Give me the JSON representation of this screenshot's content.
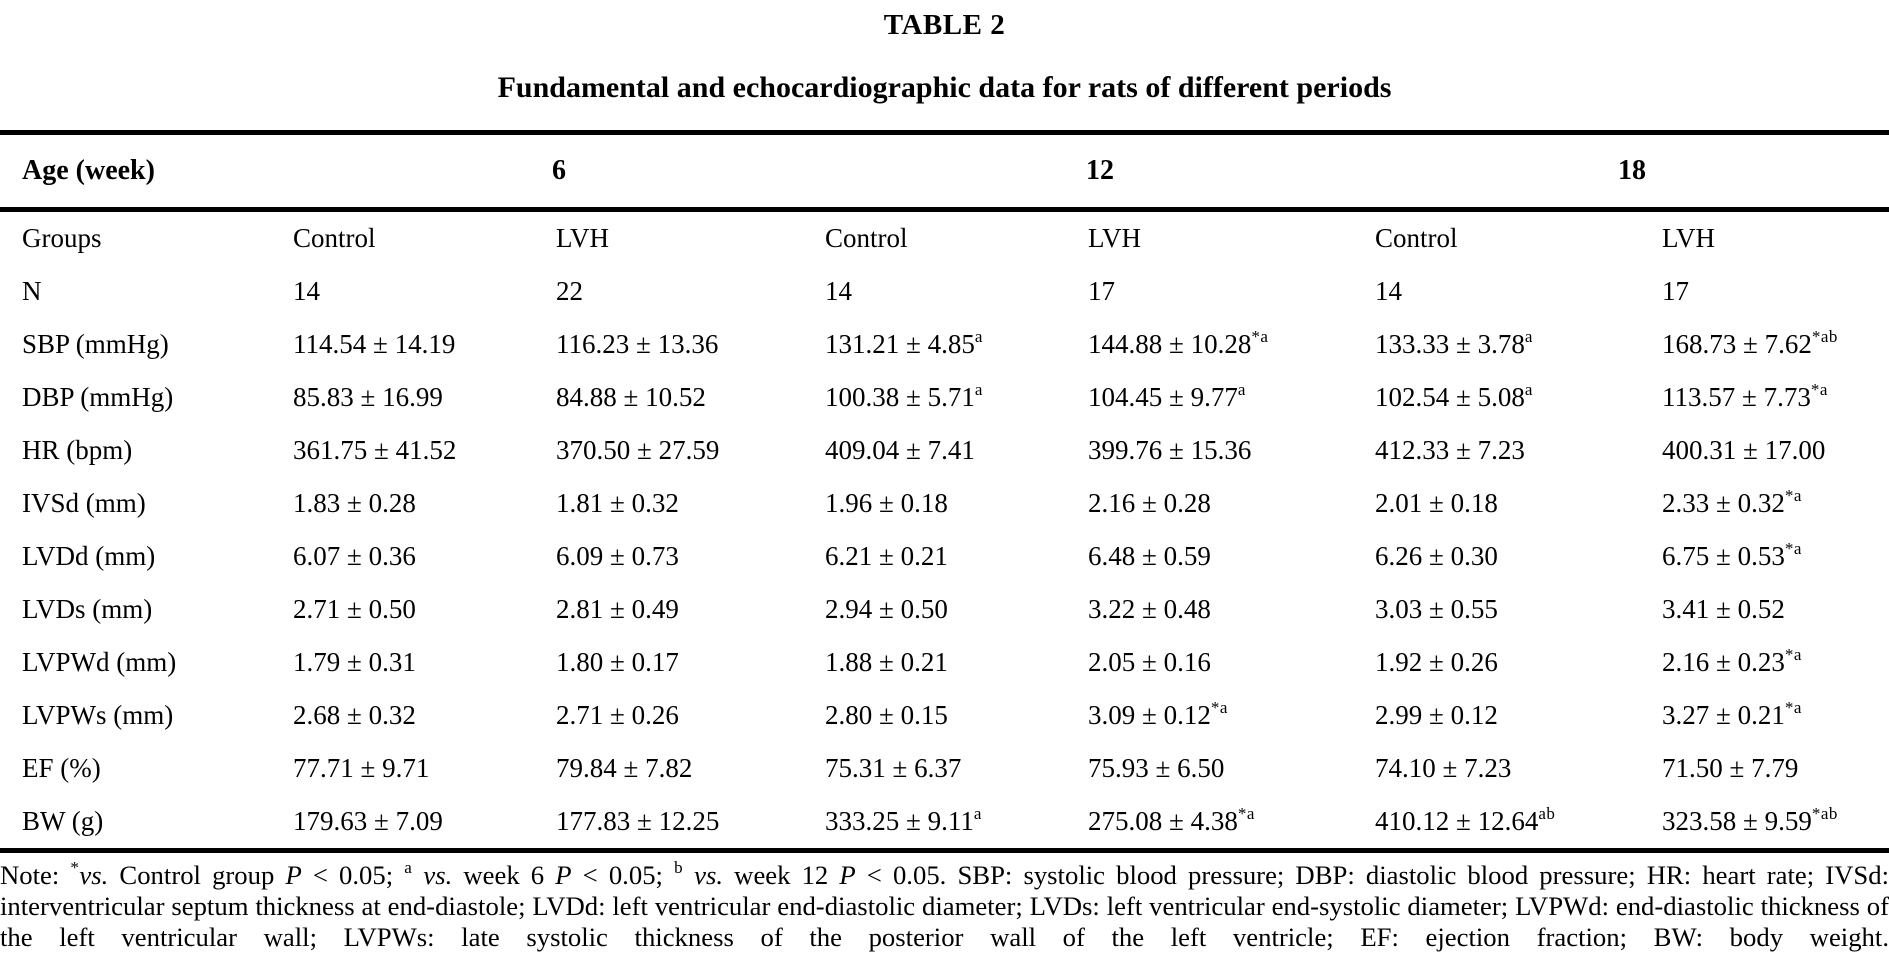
{
  "colors": {
    "text": "#000000",
    "background": "#ffffff"
  },
  "page": {
    "title": "TABLE 2",
    "subtitle": "Fundamental and echocardiographic data for rats of different periods"
  },
  "table": {
    "age_row": {
      "label": "Age (week)",
      "groups": [
        "6",
        "12",
        "18"
      ]
    },
    "rows": [
      {
        "label": "Groups",
        "cells": [
          {
            "v": "Control"
          },
          {
            "v": "LVH"
          },
          {
            "v": "Control"
          },
          {
            "v": "LVH"
          },
          {
            "v": "Control"
          },
          {
            "v": "LVH"
          }
        ]
      },
      {
        "label": "N",
        "cells": [
          {
            "v": "14"
          },
          {
            "v": "22"
          },
          {
            "v": "14"
          },
          {
            "v": "17"
          },
          {
            "v": "14"
          },
          {
            "v": "17"
          }
        ]
      },
      {
        "label": "SBP (mmHg)",
        "cells": [
          {
            "v": "114.54 ± 14.19"
          },
          {
            "v": "116.23 ± 13.36"
          },
          {
            "v": "131.21 ± 4.85",
            "s": "a"
          },
          {
            "v": "144.88 ± 10.28",
            "s": "*a"
          },
          {
            "v": "133.33 ± 3.78",
            "s": "a"
          },
          {
            "v": "168.73 ± 7.62",
            "s": "*ab"
          }
        ]
      },
      {
        "label": "DBP (mmHg)",
        "cells": [
          {
            "v": "85.83 ± 16.99"
          },
          {
            "v": "84.88 ± 10.52"
          },
          {
            "v": "100.38 ± 5.71",
            "s": "a"
          },
          {
            "v": "104.45 ± 9.77",
            "s": "a"
          },
          {
            "v": "102.54 ± 5.08",
            "s": "a"
          },
          {
            "v": "113.57 ± 7.73",
            "s": "*a"
          }
        ]
      },
      {
        "label": "HR (bpm)",
        "cells": [
          {
            "v": "361.75 ± 41.52"
          },
          {
            "v": "370.50 ± 27.59"
          },
          {
            "v": "409.04 ± 7.41"
          },
          {
            "v": "399.76 ± 15.36"
          },
          {
            "v": "412.33 ± 7.23"
          },
          {
            "v": "400.31 ± 17.00"
          }
        ]
      },
      {
        "label": "IVSd (mm)",
        "cells": [
          {
            "v": "1.83 ± 0.28"
          },
          {
            "v": "1.81 ± 0.32"
          },
          {
            "v": "1.96 ± 0.18"
          },
          {
            "v": "2.16 ± 0.28"
          },
          {
            "v": "2.01 ± 0.18"
          },
          {
            "v": "2.33 ± 0.32",
            "s": "*a"
          }
        ]
      },
      {
        "label": "LVDd (mm)",
        "cells": [
          {
            "v": "6.07 ± 0.36"
          },
          {
            "v": "6.09 ± 0.73"
          },
          {
            "v": "6.21 ± 0.21"
          },
          {
            "v": "6.48 ± 0.59"
          },
          {
            "v": "6.26 ± 0.30"
          },
          {
            "v": "6.75 ± 0.53",
            "s": "*a"
          }
        ]
      },
      {
        "label": "LVDs (mm)",
        "cells": [
          {
            "v": "2.71 ± 0.50"
          },
          {
            "v": "2.81 ± 0.49"
          },
          {
            "v": "2.94 ± 0.50"
          },
          {
            "v": "3.22 ± 0.48"
          },
          {
            "v": "3.03 ± 0.55"
          },
          {
            "v": "3.41 ± 0.52"
          }
        ]
      },
      {
        "label": "LVPWd (mm)",
        "cells": [
          {
            "v": "1.79 ± 0.31"
          },
          {
            "v": "1.80 ± 0.17"
          },
          {
            "v": "1.88 ± 0.21"
          },
          {
            "v": "2.05 ± 0.16"
          },
          {
            "v": "1.92 ± 0.26"
          },
          {
            "v": "2.16 ± 0.23",
            "s": "*a"
          }
        ]
      },
      {
        "label": "LVPWs (mm)",
        "cells": [
          {
            "v": "2.68 ± 0.32"
          },
          {
            "v": "2.71 ± 0.26"
          },
          {
            "v": "2.80 ± 0.15"
          },
          {
            "v": "3.09 ± 0.12",
            "s": "*a"
          },
          {
            "v": "2.99 ± 0.12"
          },
          {
            "v": "3.27 ± 0.21",
            "s": "*a"
          }
        ]
      },
      {
        "label": "EF (%)",
        "cells": [
          {
            "v": "77.71 ± 9.71"
          },
          {
            "v": "79.84 ± 7.82"
          },
          {
            "v": "75.31 ± 6.37"
          },
          {
            "v": "75.93 ± 6.50"
          },
          {
            "v": "74.10 ± 7.23"
          },
          {
            "v": "71.50 ± 7.79"
          }
        ]
      },
      {
        "label": "BW (g)",
        "cells": [
          {
            "v": "179.63 ± 7.09"
          },
          {
            "v": "177.83 ± 12.25"
          },
          {
            "v": "333.25 ± 9.11",
            "s": "a"
          },
          {
            "v": "275.08 ± 4.38",
            "s": "*a"
          },
          {
            "v": "410.12 ± 12.64",
            "s": "ab"
          },
          {
            "v": "323.58 ± 9.59",
            "s": "*ab"
          }
        ]
      }
    ]
  },
  "note": {
    "segments": [
      {
        "t": "Note: "
      },
      {
        "t": "*",
        "st": "sup"
      },
      {
        "t": "vs.",
        "st": "i"
      },
      {
        "t": " Control group "
      },
      {
        "t": "P",
        "st": "i"
      },
      {
        "t": " < 0.05; "
      },
      {
        "t": "a",
        "st": "sup"
      },
      {
        "t": " "
      },
      {
        "t": "vs.",
        "st": "i"
      },
      {
        "t": " week 6 "
      },
      {
        "t": "P",
        "st": "i"
      },
      {
        "t": " < 0.05; "
      },
      {
        "t": "b",
        "st": "sup"
      },
      {
        "t": " "
      },
      {
        "t": "vs.",
        "st": "i"
      },
      {
        "t": " week 12 "
      },
      {
        "t": "P",
        "st": "i"
      },
      {
        "t": " < 0.05. SBP: systolic blood pressure; DBP: diastolic blood pressure; HR: heart rate; IVSd: interventricular septum thickness at end-diastole; LVDd: left ventricular end-diastolic diameter; LVDs: left ventricular end-systolic diameter; LVPWd: end-diastolic thickness of the left ventricular wall; LVPWs: late systolic thickness of the posterior wall of the left ventricle; EF: ejection fraction; BW: body weight."
      }
    ]
  }
}
